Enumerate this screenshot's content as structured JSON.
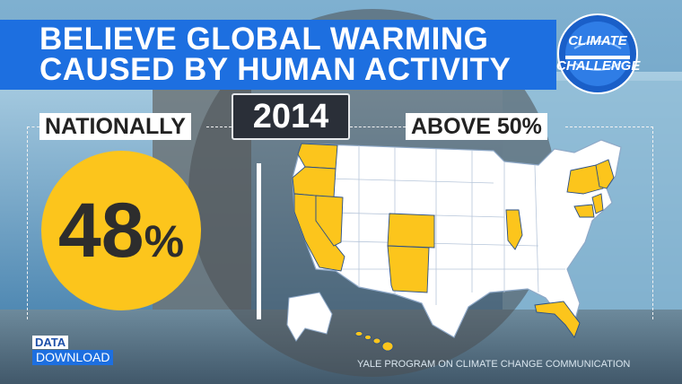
{
  "title": {
    "line1": "BELIEVE GLOBAL WARMING",
    "line2": "CAUSED BY HUMAN ACTIVITY"
  },
  "badge": {
    "line1": "CLIMATE",
    "line2": "CHALLENGE"
  },
  "year": "2014",
  "national": {
    "label": "NATIONALLY",
    "value": "48",
    "unit": "%"
  },
  "map_legend": {
    "label": "ABOVE 50%"
  },
  "map_data": {
    "highlight_color": "#fcc51c",
    "states_above_50": [
      "Washington",
      "Oregon",
      "California",
      "Nevada",
      "Colorado",
      "New Mexico",
      "Illinois",
      "New York",
      "Vermont",
      "New Hampshire",
      "Massachusetts",
      "Connecticut",
      "Rhode Island",
      "New Jersey",
      "Delaware",
      "Maryland",
      "Florida",
      "Hawaii"
    ]
  },
  "branding": {
    "line1": "DATA",
    "line2": "DOWNLOAD"
  },
  "source": "YALE PROGRAM ON CLIMATE CHANGE COMMUNICATION",
  "colors": {
    "title_bar": "#1d6fe0",
    "accent_yellow": "#fcc51c",
    "dark_box": "#2a2f38"
  }
}
